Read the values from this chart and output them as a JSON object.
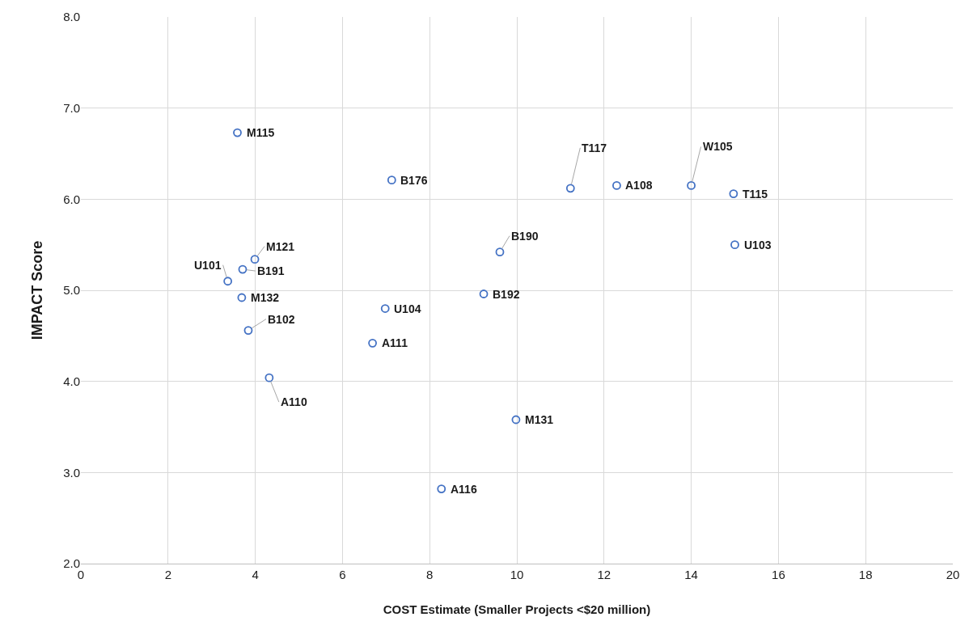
{
  "chart_data": {
    "type": "scatter",
    "xlabel": "COST Estimate (Smaller Projects <$20 million)",
    "ylabel": "IMPACT Score",
    "xlim": [
      0,
      20
    ],
    "xticks": [
      0,
      2,
      4,
      6,
      8,
      10,
      12,
      14,
      16,
      18,
      20
    ],
    "ylim": [
      2,
      8
    ],
    "yticks": [
      {
        "value": 2,
        "label": "2.0"
      },
      {
        "value": 3,
        "label": "3.0"
      },
      {
        "value": 4,
        "label": "4.0"
      },
      {
        "value": 5,
        "label": "5.0"
      },
      {
        "value": 6,
        "label": "6.0"
      },
      {
        "value": 7,
        "label": "7.0"
      },
      {
        "value": 8,
        "label": "8.0"
      }
    ],
    "grid": true,
    "marker": "circle",
    "series": [
      {
        "color": "#4472c4",
        "x": [
          3.59,
          7.13,
          11.23,
          12.29,
          14.0,
          14.97,
          15.0,
          9.61,
          3.99,
          3.71,
          3.37,
          3.69,
          9.24,
          6.98,
          3.84,
          6.69,
          4.32,
          9.98,
          8.27
        ],
        "values": [
          6.73,
          6.21,
          6.12,
          6.15,
          6.15,
          6.06,
          5.5,
          5.42,
          5.34,
          5.23,
          5.1,
          4.92,
          4.96,
          4.8,
          4.56,
          4.42,
          4.04,
          3.58,
          2.82
        ]
      }
    ],
    "annotations": [
      {
        "text": "M115",
        "x": 3.59,
        "y": 6.73
      },
      {
        "text": "B176",
        "x": 7.13,
        "y": 6.21
      },
      {
        "text": "T117",
        "x": 11.23,
        "y": 6.12
      },
      {
        "text": "A108",
        "x": 12.29,
        "y": 6.15
      },
      {
        "text": "W105",
        "x": 14.0,
        "y": 6.15
      },
      {
        "text": "T115",
        "x": 14.97,
        "y": 6.06
      },
      {
        "text": "U103",
        "x": 15.0,
        "y": 5.5
      },
      {
        "text": "B190",
        "x": 9.61,
        "y": 5.42
      },
      {
        "text": "M121",
        "x": 3.99,
        "y": 5.34
      },
      {
        "text": "B191",
        "x": 3.71,
        "y": 5.23
      },
      {
        "text": "U101",
        "x": 3.37,
        "y": 5.1
      },
      {
        "text": "M132",
        "x": 3.69,
        "y": 4.92
      },
      {
        "text": "B192",
        "x": 9.24,
        "y": 4.96
      },
      {
        "text": "U104",
        "x": 6.98,
        "y": 4.8
      },
      {
        "text": "B102",
        "x": 3.84,
        "y": 4.56
      },
      {
        "text": "A111",
        "x": 6.69,
        "y": 4.42
      },
      {
        "text": "A110",
        "x": 4.32,
        "y": 4.04
      },
      {
        "text": "M131",
        "x": 9.98,
        "y": 3.58
      },
      {
        "text": "A116",
        "x": 8.27,
        "y": 2.82
      }
    ]
  }
}
